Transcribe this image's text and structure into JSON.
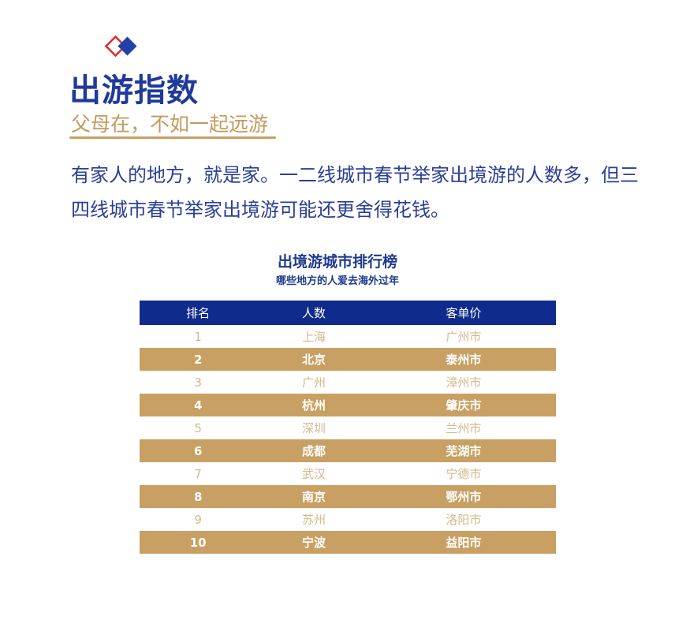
{
  "header": {
    "title": "出游指数",
    "subtitle": "父母在，不如一起远游"
  },
  "intro": "有家人的地方，就是家。一二线城市春节举家出境游的人数多，但三四线城市春节举家出境游可能还更舍得花钱。",
  "table": {
    "title": "出境游城市排行榜",
    "subtitle": "哪些地方的人爱去海外过年",
    "columns": [
      "排名",
      "人数",
      "客单价"
    ],
    "rows": [
      [
        "1",
        "上海",
        "广州市"
      ],
      [
        "2",
        "北京",
        "泰州市"
      ],
      [
        "3",
        "广州",
        "漳州市"
      ],
      [
        "4",
        "杭州",
        "肇庆市"
      ],
      [
        "5",
        "深圳",
        "兰州市"
      ],
      [
        "6",
        "成都",
        "芜湖市"
      ],
      [
        "7",
        "武汉",
        "宁德市"
      ],
      [
        "8",
        "南京",
        "鄂州市"
      ],
      [
        "9",
        "苏州",
        "洛阳市"
      ],
      [
        "10",
        "宁波",
        "益阳市"
      ]
    ]
  },
  "colors": {
    "brand_blue": "#0f2b8c",
    "gold": "#c9a063",
    "red": "#e02a2a"
  }
}
